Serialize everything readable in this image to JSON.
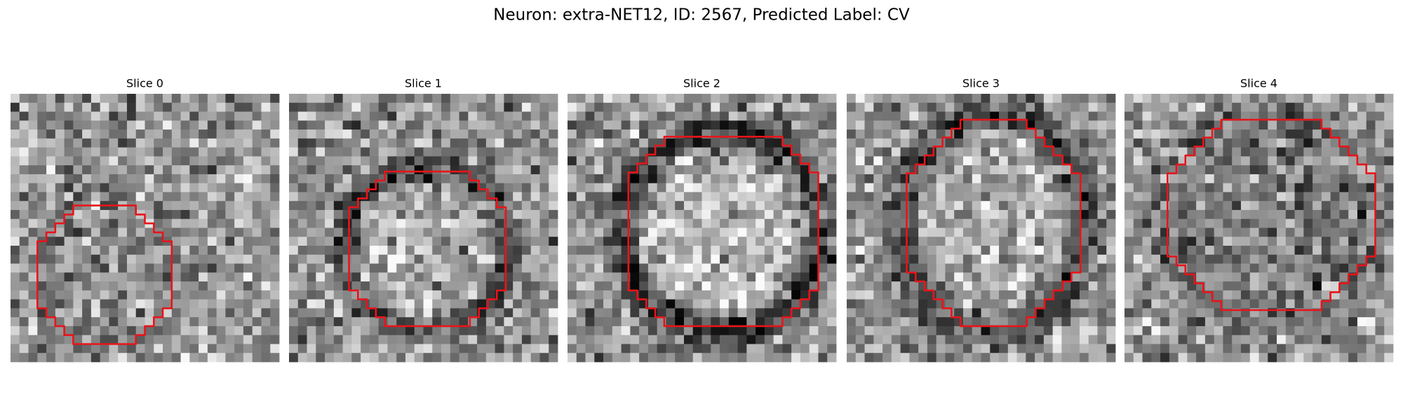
{
  "title": "Neuron: extra-NET12, ID: 2567, Predicted Label: CV",
  "panels": [
    {
      "title": "Slice 0"
    },
    {
      "title": "Slice 1"
    },
    {
      "title": "Slice 2"
    },
    {
      "title": "Slice 3"
    },
    {
      "title": "Slice 4"
    }
  ]
}
